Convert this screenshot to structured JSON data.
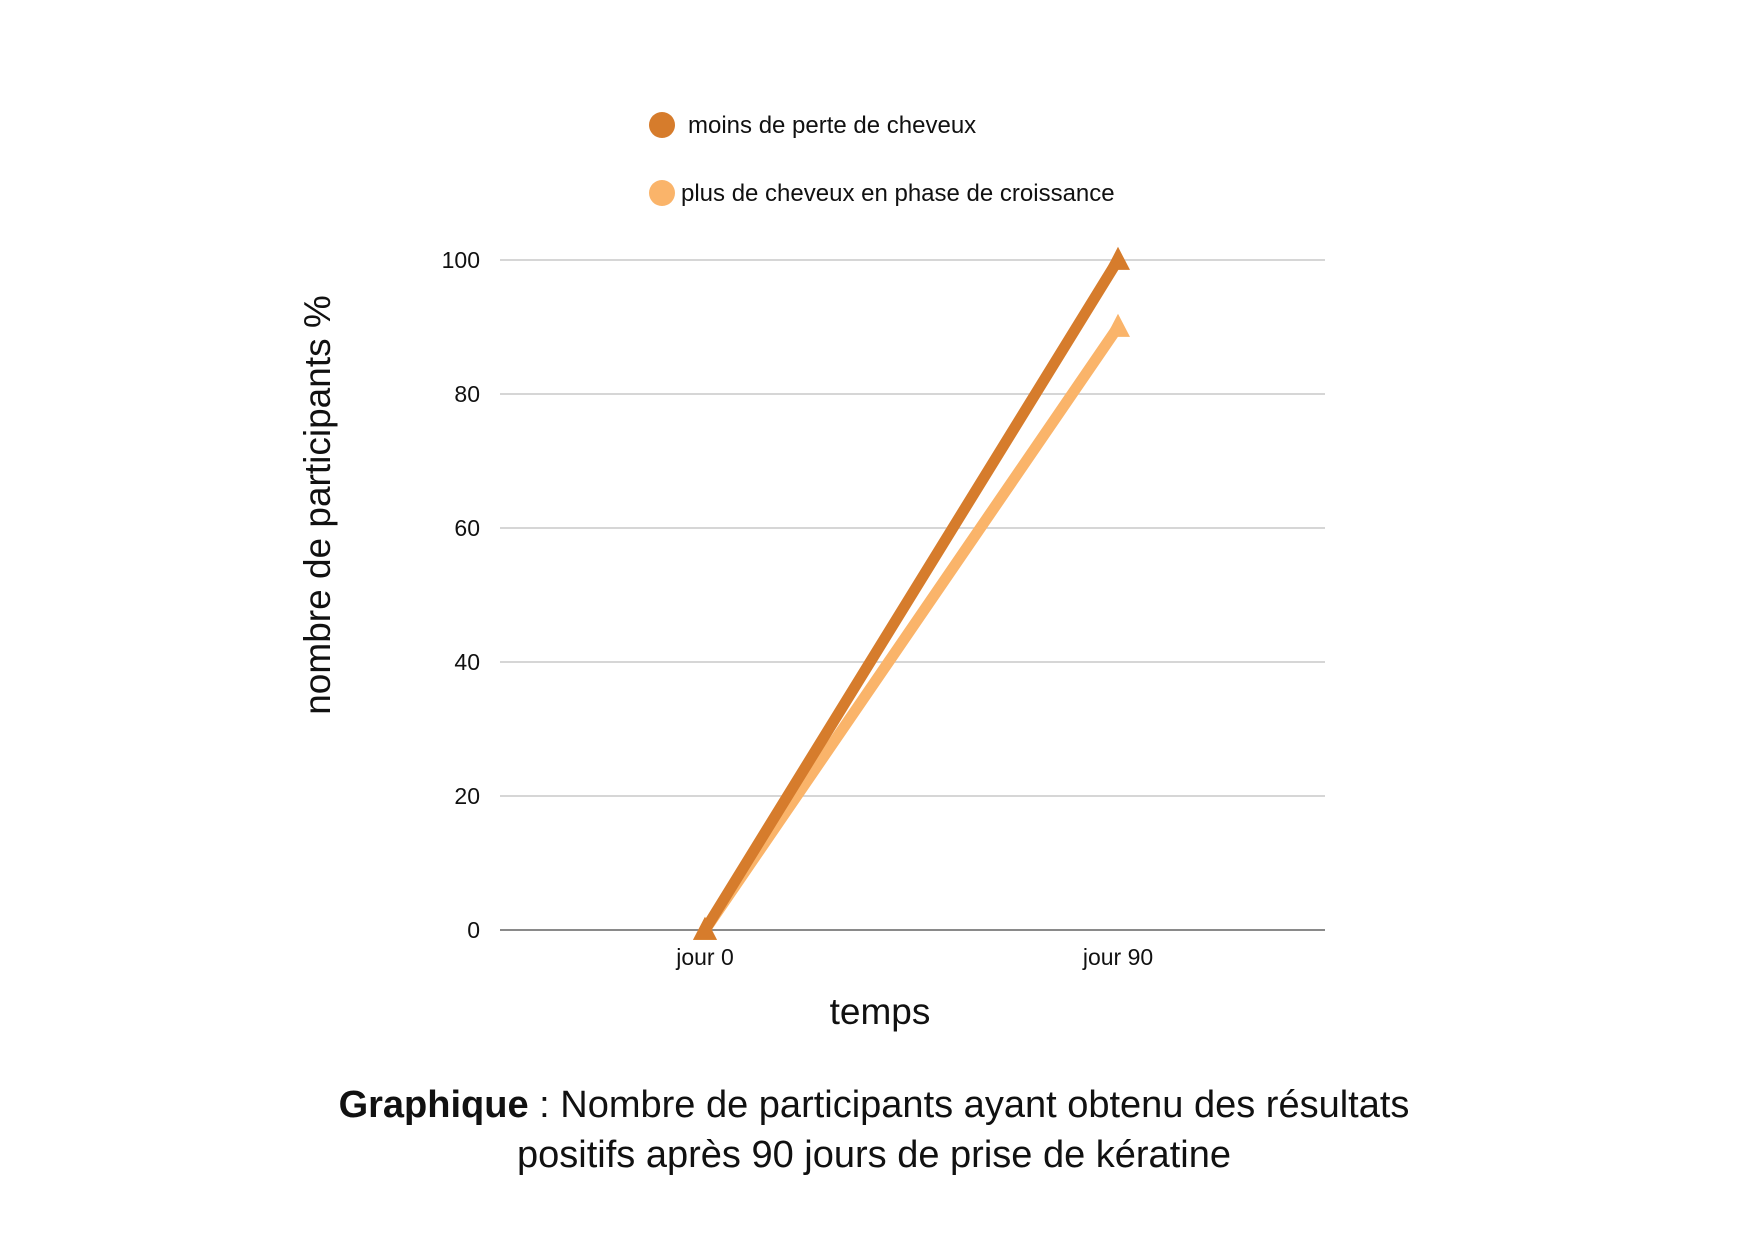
{
  "chart_data": {
    "type": "line",
    "categories": [
      "jour 0",
      "jour 90"
    ],
    "series": [
      {
        "name": "moins de perte de cheveux",
        "values": [
          0,
          100
        ],
        "color": "#D67C2C",
        "marker": "triangle"
      },
      {
        "name": "plus de cheveux en phase de croissance",
        "values": [
          0,
          90
        ],
        "color": "#FAB46A",
        "marker": "triangle"
      }
    ],
    "xlabel": "temps",
    "ylabel": "nombre de participants %",
    "ylim": [
      0,
      100
    ],
    "yticks": [
      0,
      20,
      40,
      60,
      80,
      100
    ],
    "grid": true,
    "legend_position": "top"
  },
  "caption": {
    "bold": "Graphique",
    "line1": " : Nombre de participants ayant obtenu des résultats",
    "line2": "positifs après 90 jours de prise de kératine"
  }
}
